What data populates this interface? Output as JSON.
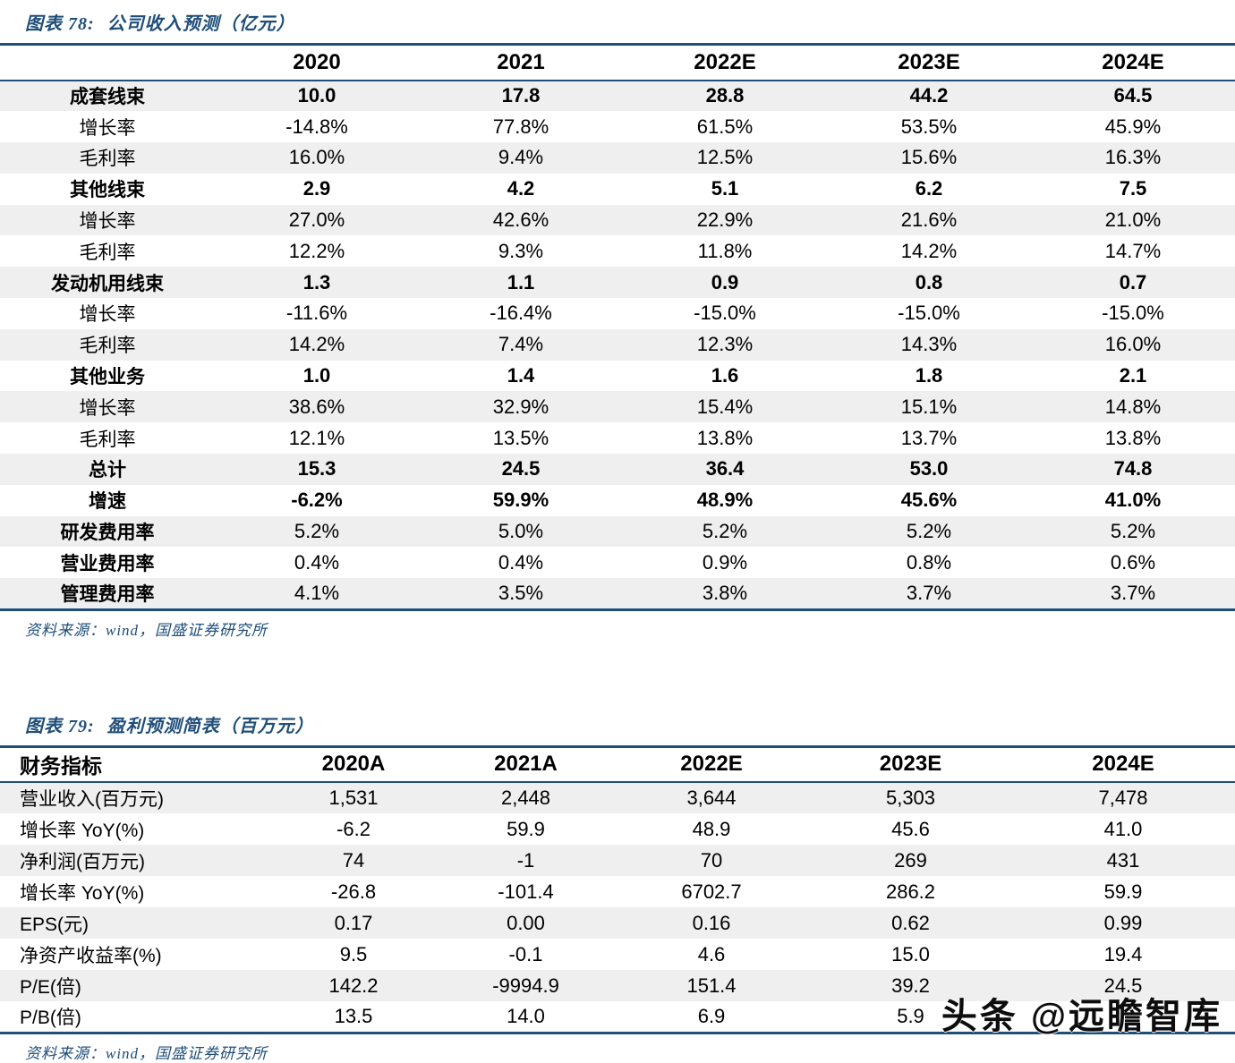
{
  "colors": {
    "rule_navy": "#1f4e79",
    "caption_blue": "#1f4e79",
    "stripe_gray": "#efefef",
    "watermark_black": "#0d0d0d"
  },
  "table1": {
    "figure_label": "图表 78:",
    "title": "公司收入预测（亿元）",
    "columns": [
      "",
      "2020",
      "2021",
      "2022E",
      "2023E",
      "2024E"
    ],
    "rows": [
      {
        "label": "成套线束",
        "label_bold": true,
        "value_bold": true,
        "values": [
          "10.0",
          "17.8",
          "28.8",
          "44.2",
          "64.5"
        ]
      },
      {
        "label": "增长率",
        "label_bold": false,
        "value_bold": false,
        "values": [
          "-14.8%",
          "77.8%",
          "61.5%",
          "53.5%",
          "45.9%"
        ]
      },
      {
        "label": "毛利率",
        "label_bold": false,
        "value_bold": false,
        "values": [
          "16.0%",
          "9.4%",
          "12.5%",
          "15.6%",
          "16.3%"
        ]
      },
      {
        "label": "其他线束",
        "label_bold": true,
        "value_bold": true,
        "values": [
          "2.9",
          "4.2",
          "5.1",
          "6.2",
          "7.5"
        ]
      },
      {
        "label": "增长率",
        "label_bold": false,
        "value_bold": false,
        "values": [
          "27.0%",
          "42.6%",
          "22.9%",
          "21.6%",
          "21.0%"
        ]
      },
      {
        "label": "毛利率",
        "label_bold": false,
        "value_bold": false,
        "values": [
          "12.2%",
          "9.3%",
          "11.8%",
          "14.2%",
          "14.7%"
        ]
      },
      {
        "label": "发动机用线束",
        "label_bold": true,
        "value_bold": true,
        "values": [
          "1.3",
          "1.1",
          "0.9",
          "0.8",
          "0.7"
        ]
      },
      {
        "label": "增长率",
        "label_bold": false,
        "value_bold": false,
        "values": [
          "-11.6%",
          "-16.4%",
          "-15.0%",
          "-15.0%",
          "-15.0%"
        ]
      },
      {
        "label": "毛利率",
        "label_bold": false,
        "value_bold": false,
        "values": [
          "14.2%",
          "7.4%",
          "12.3%",
          "14.3%",
          "16.0%"
        ]
      },
      {
        "label": "其他业务",
        "label_bold": true,
        "value_bold": true,
        "values": [
          "1.0",
          "1.4",
          "1.6",
          "1.8",
          "2.1"
        ]
      },
      {
        "label": "增长率",
        "label_bold": false,
        "value_bold": false,
        "values": [
          "38.6%",
          "32.9%",
          "15.4%",
          "15.1%",
          "14.8%"
        ]
      },
      {
        "label": "毛利率",
        "label_bold": false,
        "value_bold": false,
        "values": [
          "12.1%",
          "13.5%",
          "13.8%",
          "13.7%",
          "13.8%"
        ]
      },
      {
        "label": "总计",
        "label_bold": true,
        "value_bold": true,
        "values": [
          "15.3",
          "24.5",
          "36.4",
          "53.0",
          "74.8"
        ]
      },
      {
        "label": "增速",
        "label_bold": true,
        "value_bold": true,
        "values": [
          "-6.2%",
          "59.9%",
          "48.9%",
          "45.6%",
          "41.0%"
        ]
      },
      {
        "label": "研发费用率",
        "label_bold": true,
        "value_bold": false,
        "values": [
          "5.2%",
          "5.0%",
          "5.2%",
          "5.2%",
          "5.2%"
        ]
      },
      {
        "label": "营业费用率",
        "label_bold": true,
        "value_bold": false,
        "values": [
          "0.4%",
          "0.4%",
          "0.9%",
          "0.8%",
          "0.6%"
        ]
      },
      {
        "label": "管理费用率",
        "label_bold": true,
        "value_bold": false,
        "values": [
          "4.1%",
          "3.5%",
          "3.8%",
          "3.7%",
          "3.7%"
        ]
      }
    ],
    "source": "资料来源：wind，国盛证券研究所"
  },
  "table2": {
    "figure_label": "图表 79:",
    "title": "盈利预测简表（百万元）",
    "columns": [
      "财务指标",
      "2020A",
      "2021A",
      "2022E",
      "2023E",
      "2024E"
    ],
    "rows": [
      {
        "label": "营业收入(百万元)",
        "values": [
          "1,531",
          "2,448",
          "3,644",
          "5,303",
          "7,478"
        ]
      },
      {
        "label": "增长率 YoY(%)",
        "values": [
          "-6.2",
          "59.9",
          "48.9",
          "45.6",
          "41.0"
        ]
      },
      {
        "label": "净利润(百万元)",
        "values": [
          "74",
          "-1",
          "70",
          "269",
          "431"
        ]
      },
      {
        "label": "增长率 YoY(%)",
        "values": [
          "-26.8",
          "-101.4",
          "6702.7",
          "286.2",
          "59.9"
        ]
      },
      {
        "label": "EPS(元)",
        "values": [
          "0.17",
          "0.00",
          "0.16",
          "0.62",
          "0.99"
        ]
      },
      {
        "label": "净资产收益率(%)",
        "values": [
          "9.5",
          "-0.1",
          "4.6",
          "15.0",
          "19.4"
        ]
      },
      {
        "label": "P/E(倍)",
        "values": [
          "142.2",
          "-9994.9",
          "151.4",
          "39.2",
          "24.5"
        ]
      },
      {
        "label": "P/B(倍)",
        "values": [
          "13.5",
          "14.0",
          "6.9",
          "5.9",
          ""
        ]
      }
    ],
    "source": "资料来源：wind，国盛证券研究所"
  },
  "watermark": {
    "text": "头条 @远瞻智库"
  }
}
